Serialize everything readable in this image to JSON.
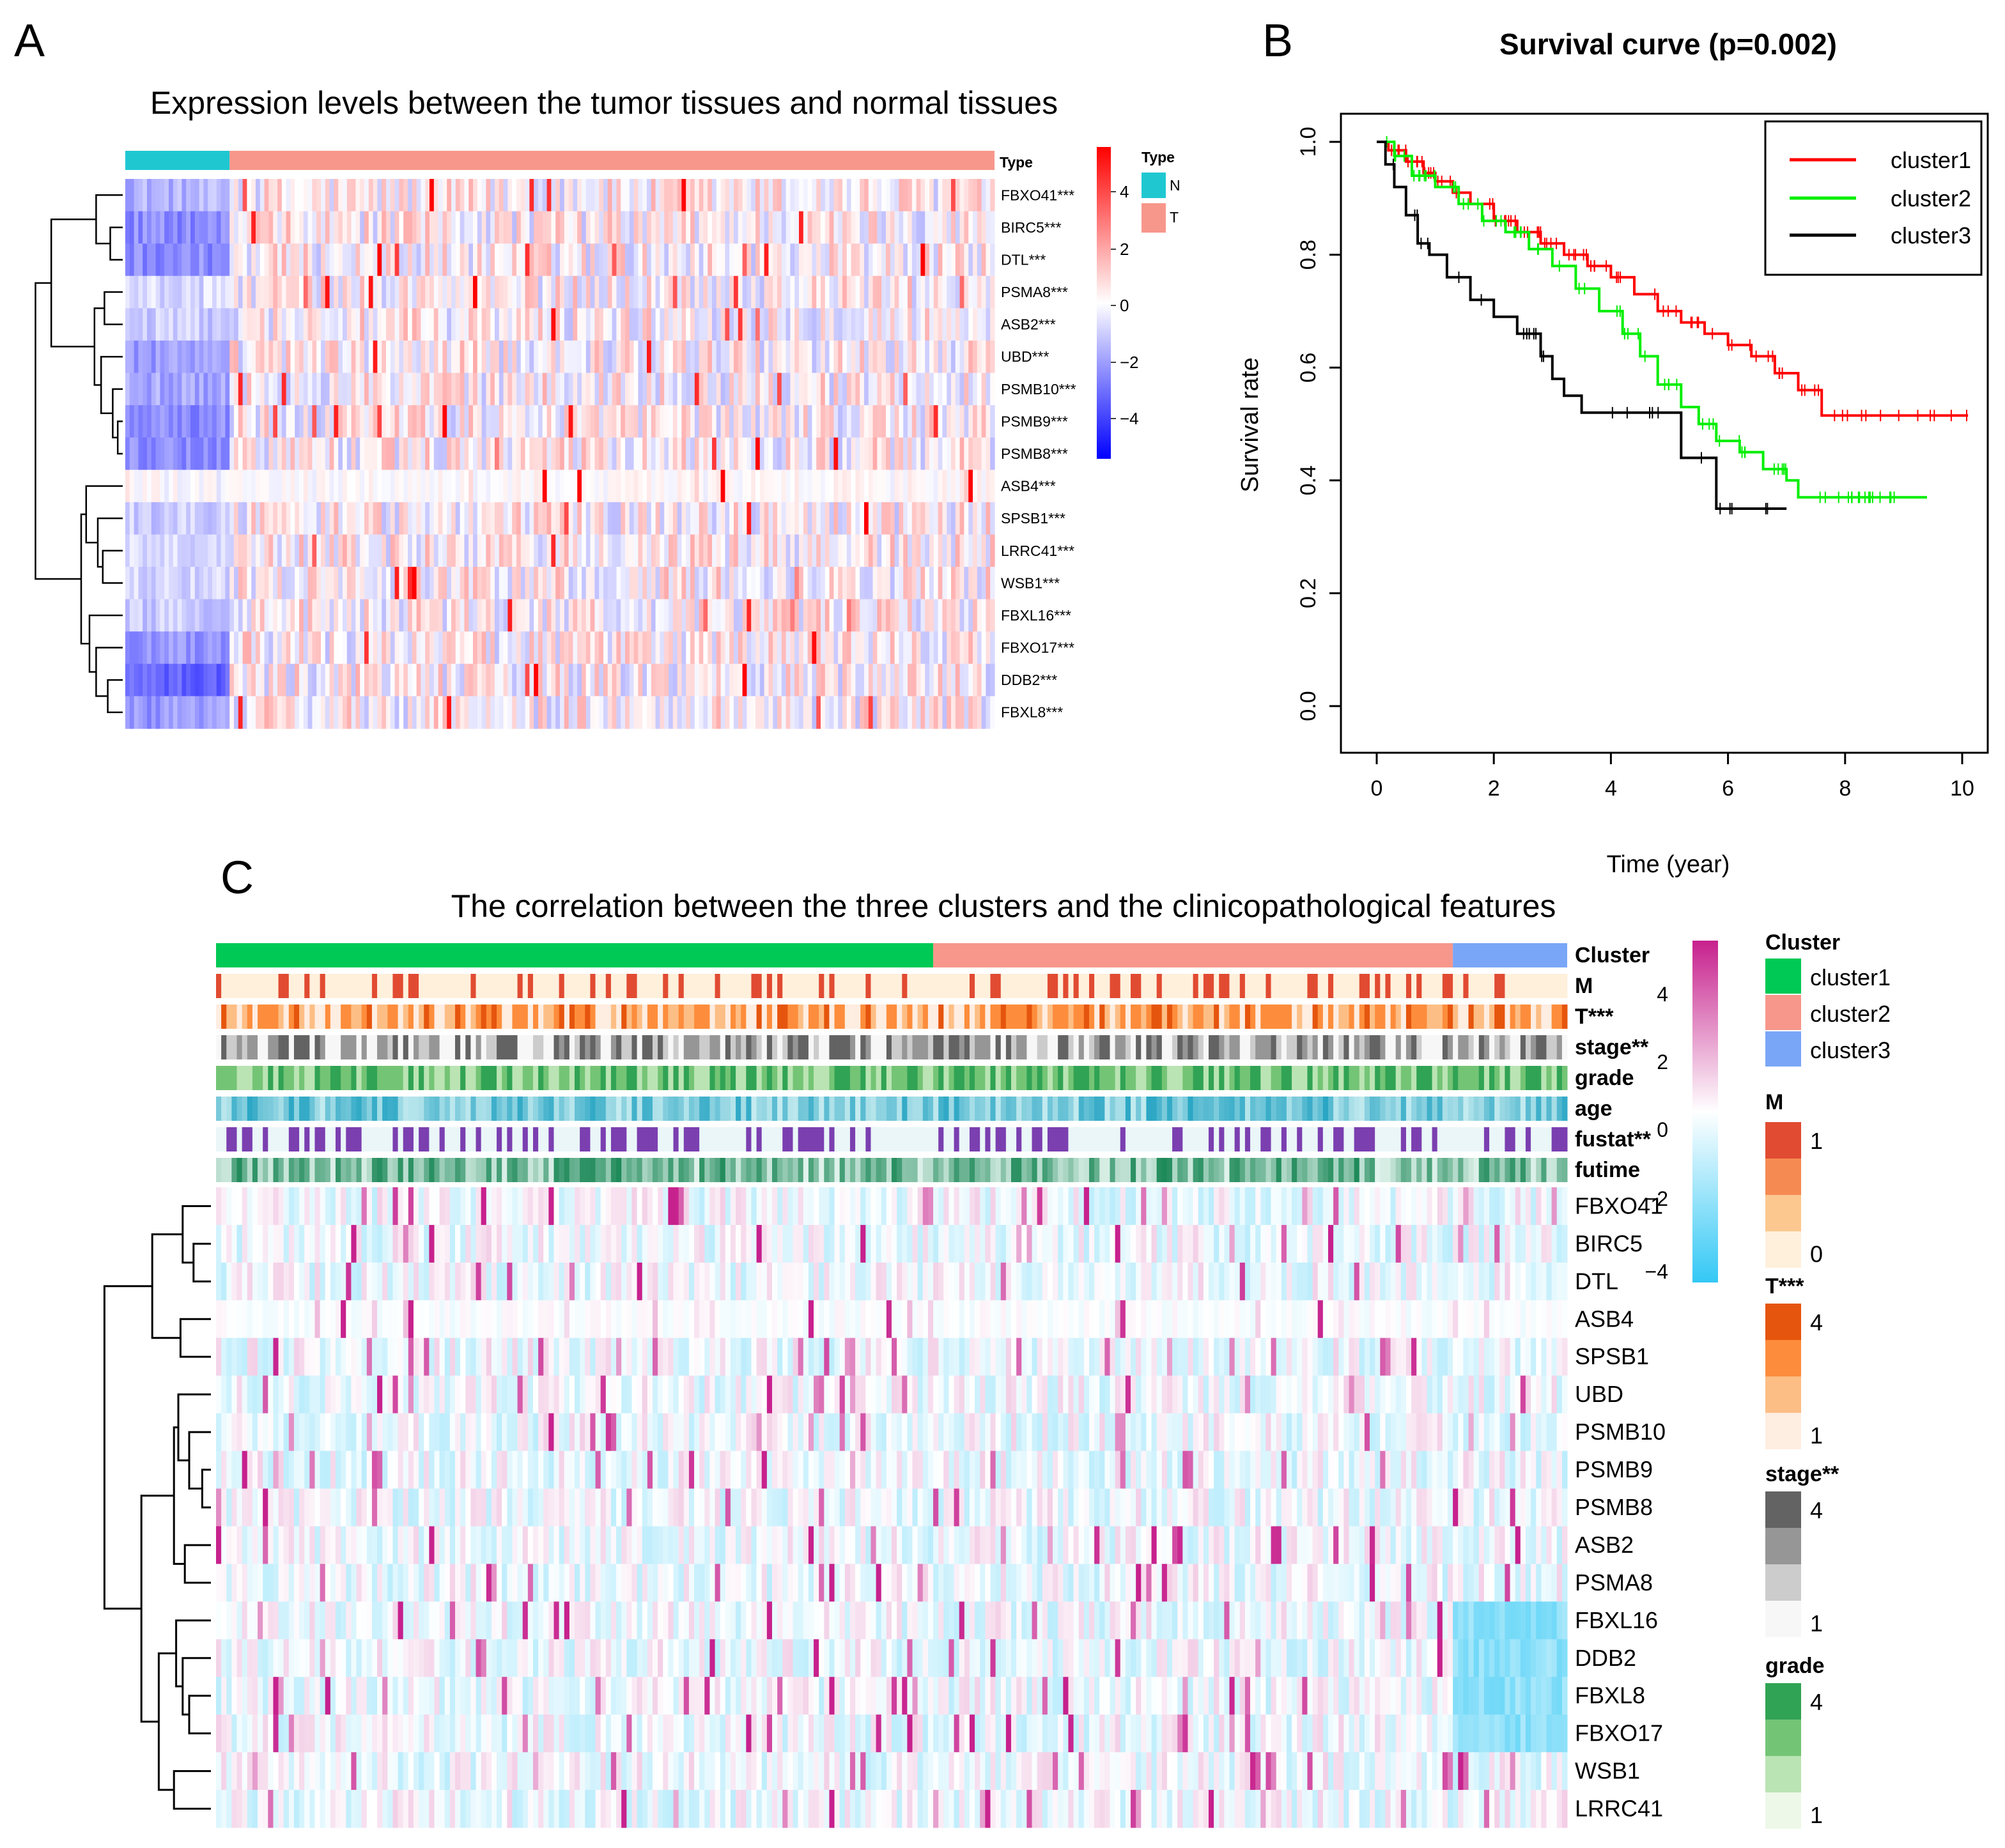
{
  "panelA": {
    "letter": "A",
    "title": "Expression levels between the tumor tissues and normal tissues",
    "type_label": "Type",
    "legend_title": "Type",
    "legend_items": [
      {
        "label": "N",
        "color": "#1fc8d1"
      },
      {
        "label": "T",
        "color": "#f7978b"
      }
    ],
    "colorbar_ticks": [
      "4",
      "2",
      "0",
      "−2",
      "−4"
    ],
    "colors": {
      "high": "#ff0000",
      "mid": "#ffffff",
      "low": "#0000ff"
    }
  },
  "panelB": {
    "letter": "B",
    "title": "Survival curve (p=0.002)"
  },
  "panelC": {
    "letter": "C",
    "title": "The correlation between the three clusters and the clinicopathological features",
    "annotation_rows": [
      "Cluster",
      "M",
      "T***",
      "stage**",
      "grade",
      "age",
      "fustat**",
      "futime"
    ],
    "colorbar_ticks": [
      "4",
      "2",
      "0",
      "−2",
      "−4"
    ],
    "legend": {
      "cluster": {
        "title": "Cluster",
        "items": [
          {
            "label": "cluster1",
            "color": "#00c955"
          },
          {
            "label": "cluster2",
            "color": "#f7978b"
          },
          {
            "label": "cluster3",
            "color": "#7aa6f7"
          }
        ]
      },
      "M": {
        "title": "M",
        "colors": [
          "#e14b32",
          "#f58a52",
          "#fcc88f",
          "#fff0dc"
        ],
        "top_label": "1",
        "bottom_label": "0"
      },
      "T": {
        "title": "T***",
        "colors": [
          "#e6550d",
          "#fd8d3c",
          "#fdbe85",
          "#feede1"
        ],
        "top_label": "4",
        "bottom_label": "1"
      },
      "stage": {
        "title": "stage**",
        "colors": [
          "#636363",
          "#969696",
          "#cccccc",
          "#f7f7f7"
        ],
        "top_label": "4",
        "bottom_label": "1"
      },
      "grade": {
        "title": "grade",
        "colors": [
          "#31a354",
          "#74c476",
          "#bae4b3",
          "#edf8e9"
        ],
        "top_label": "4",
        "bottom_label": "1"
      }
    },
    "colors": {
      "high": "#c7218d",
      "mid": "#ffffff",
      "low": "#33c8f5"
    }
  },
  "chart_data": [
    {
      "type": "heatmap",
      "title": "Expression levels between the tumor tissues and normal tissues",
      "rows": [
        "FBXO41***",
        "BIRC5***",
        "DTL***",
        "PSMA8***",
        "ASB2***",
        "UBD***",
        "PSMB10***",
        "PSMB9***",
        "PSMB8***",
        "ASB4***",
        "SPSB1***",
        "LRRC41***",
        "WSB1***",
        "FBXL16***",
        "FBXO17***",
        "DDB2***",
        "FBXL8***"
      ],
      "column_groups": [
        {
          "name": "N",
          "fraction": 0.118
        },
        {
          "name": "T",
          "fraction": 0.882
        }
      ],
      "color_scale": {
        "min": -4,
        "max": 4
      },
      "normal_group_mean_z": [
        -1.2,
        -1.8,
        -1.8,
        -0.6,
        -0.8,
        -1.6,
        -1.4,
        -1.8,
        -1.8,
        0.0,
        -0.8,
        -0.6,
        -0.6,
        -0.8,
        -1.6,
        -2.4,
        -1.6
      ]
    },
    {
      "type": "line",
      "title": "Survival curve (p=0.002)",
      "xlabel": "Time (year)",
      "ylabel": "Survival rate",
      "xlim": [
        0,
        10
      ],
      "ylim": [
        0,
        1
      ],
      "xticks": [
        0,
        2,
        4,
        6,
        8,
        10
      ],
      "yticks": [
        0.0,
        0.2,
        0.4,
        0.6,
        0.8,
        1.0
      ],
      "legend_position": "top-right",
      "series": [
        {
          "name": "cluster1",
          "color": "#ff0000",
          "x": [
            0,
            0.2,
            0.5,
            0.8,
            1.0,
            1.3,
            1.6,
            2.0,
            2.4,
            2.8,
            3.2,
            3.6,
            4.0,
            4.4,
            4.8,
            5.2,
            5.6,
            6.0,
            6.4,
            6.8,
            7.2,
            7.6,
            8.0,
            9.0,
            10.1
          ],
          "y": [
            1.0,
            0.985,
            0.965,
            0.945,
            0.93,
            0.91,
            0.89,
            0.86,
            0.84,
            0.82,
            0.8,
            0.78,
            0.76,
            0.73,
            0.7,
            0.68,
            0.66,
            0.64,
            0.62,
            0.59,
            0.56,
            0.515,
            0.515,
            0.515,
            0.515
          ]
        },
        {
          "name": "cluster2",
          "color": "#00ee00",
          "x": [
            0,
            0.3,
            0.6,
            1.0,
            1.4,
            1.8,
            2.2,
            2.6,
            3.0,
            3.4,
            3.8,
            4.2,
            4.5,
            4.8,
            5.2,
            5.5,
            5.8,
            6.2,
            6.6,
            7.0,
            7.2,
            8.0,
            9.4
          ],
          "y": [
            1.0,
            0.975,
            0.94,
            0.92,
            0.89,
            0.86,
            0.84,
            0.81,
            0.78,
            0.74,
            0.7,
            0.66,
            0.62,
            0.57,
            0.53,
            0.5,
            0.47,
            0.45,
            0.42,
            0.4,
            0.37,
            0.37,
            0.37
          ]
        },
        {
          "name": "cluster3",
          "color": "#000000",
          "x": [
            0,
            0.15,
            0.3,
            0.5,
            0.7,
            0.9,
            1.2,
            1.6,
            2.0,
            2.4,
            2.8,
            3.0,
            3.2,
            3.5,
            4.0,
            4.6,
            5.2,
            5.4,
            5.8,
            6.4,
            7.0
          ],
          "y": [
            1.0,
            0.96,
            0.92,
            0.87,
            0.82,
            0.8,
            0.76,
            0.72,
            0.69,
            0.66,
            0.62,
            0.58,
            0.55,
            0.52,
            0.52,
            0.52,
            0.44,
            0.44,
            0.35,
            0.35,
            0.35
          ]
        }
      ]
    },
    {
      "type": "heatmap",
      "title": "The correlation between the three clusters and the clinicopathological features",
      "rows": [
        "FBXO41",
        "BIRC5",
        "DTL",
        "ASB4",
        "SPSB1",
        "UBD",
        "PSMB10",
        "PSMB9",
        "PSMB8",
        "ASB2",
        "PSMA8",
        "FBXL16",
        "DDB2",
        "FBXL8",
        "FBXO17",
        "WSB1",
        "LRRC41"
      ],
      "column_groups": [
        {
          "name": "cluster1",
          "fraction": 0.53
        },
        {
          "name": "cluster2",
          "fraction": 0.385
        },
        {
          "name": "cluster3",
          "fraction": 0.085
        }
      ],
      "color_scale": {
        "min": -4,
        "max": 4
      },
      "annotation_rows": [
        "Cluster",
        "M",
        "T***",
        "stage**",
        "grade",
        "age",
        "fustat**",
        "futime"
      ]
    }
  ]
}
